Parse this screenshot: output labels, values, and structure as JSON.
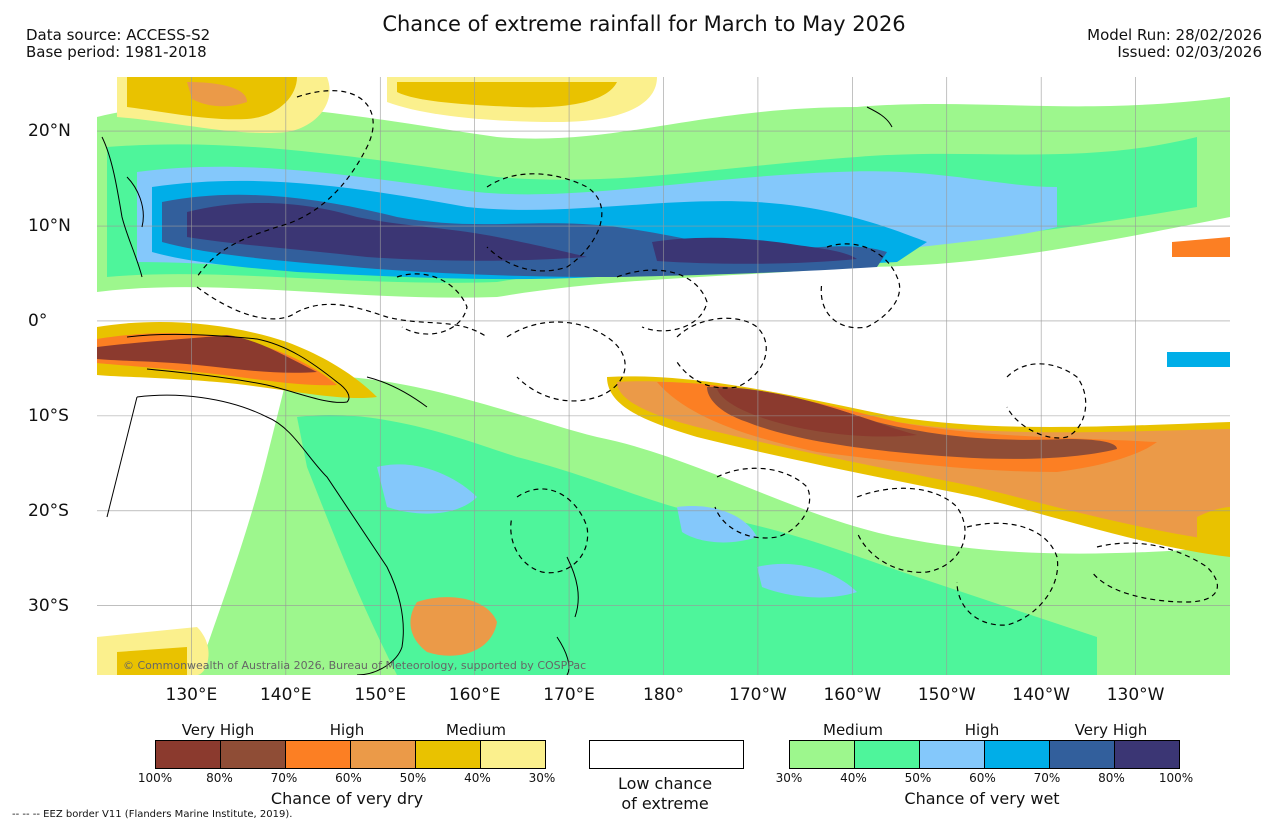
{
  "header": {
    "title": "Chance of extreme rainfall for March to May 2026",
    "data_source": "Data source: ACCESS-S2",
    "base_period": "Base period: 1981-2018",
    "model_run": "Model Run: 28/02/2026",
    "issued": "Issued: 02/03/2026"
  },
  "map": {
    "lat_labels": [
      "20°N",
      "10°N",
      "0°",
      "10°S",
      "20°S",
      "30°S"
    ],
    "lon_labels": [
      "130°E",
      "140°E",
      "150°E",
      "160°E",
      "170°E",
      "180°",
      "170°W",
      "160°W",
      "150°W",
      "140°W",
      "130°W"
    ],
    "extent": {
      "lon_min": 120,
      "lon_max": 240,
      "lat_min": -37.3,
      "lat_max": 25.7
    },
    "copyright": "© Commonwealth of Australia 2026, Bureau of Meteorology, supported by COSPPac"
  },
  "legend": {
    "dry": {
      "categories": [
        "Very High",
        "High",
        "Medium"
      ],
      "colors": [
        "#8b3a2e",
        "#8f4d36",
        "#fc7f23",
        "#eb9a48",
        "#e9c200",
        "#fbf08d"
      ],
      "ticks": [
        "100%",
        "80%",
        "70%",
        "60%",
        "50%",
        "40%",
        "30%"
      ],
      "caption": "Chance of very dry"
    },
    "low": {
      "line1": "Low chance",
      "line2": "of extreme",
      "color": "#ffffff"
    },
    "wet": {
      "categories": [
        "Medium",
        "High",
        "Very High"
      ],
      "colors": [
        "#9df78d",
        "#4ef59b",
        "#84c8fb",
        "#00aee8",
        "#325f9c",
        "#3b3674"
      ],
      "ticks": [
        "30%",
        "40%",
        "50%",
        "60%",
        "70%",
        "80%",
        "100%"
      ],
      "caption": "Chance of very wet"
    }
  },
  "footnote": "-- -- -- EEZ border V11 (Flanders Marine Institute, 2019)."
}
